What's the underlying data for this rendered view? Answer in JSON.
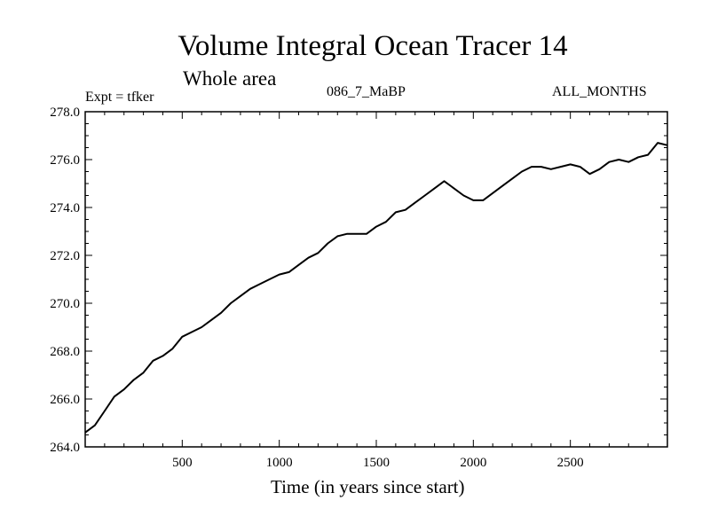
{
  "chart_data": {
    "type": "line",
    "title": "Volume Integral Ocean Tracer 14",
    "subtitle": "Whole area",
    "annotations": {
      "experiment": "Expt = tfker",
      "run": "086_7_MaBP",
      "months": "ALL_MONTHS"
    },
    "xlabel": "Time (in years since start)",
    "ylabel": "",
    "xlim": [
      0,
      3000
    ],
    "ylim": [
      264.0,
      278.0
    ],
    "xticks": [
      500,
      1000,
      1500,
      2000,
      2500
    ],
    "yticks": [
      "264.0",
      "266.0",
      "268.0",
      "270.0",
      "272.0",
      "274.0",
      "276.0",
      "278.0"
    ],
    "grid": false,
    "series": [
      {
        "x": [
          0,
          50,
          100,
          150,
          200,
          250,
          300,
          350,
          400,
          450,
          500,
          550,
          600,
          650,
          700,
          750,
          800,
          850,
          900,
          950,
          1000,
          1050,
          1100,
          1150,
          1200,
          1250,
          1300,
          1350,
          1400,
          1450,
          1500,
          1550,
          1600,
          1650,
          1700,
          1750,
          1800,
          1850,
          1900,
          1950,
          2000,
          2050,
          2100,
          2150,
          2200,
          2250,
          2300,
          2350,
          2400,
          2450,
          2500,
          2550,
          2600,
          2650,
          2700,
          2750,
          2800,
          2850,
          2900,
          2950,
          3000
        ],
        "y": [
          264.6,
          264.9,
          265.5,
          266.1,
          266.4,
          266.8,
          267.1,
          267.6,
          267.8,
          268.1,
          268.6,
          268.8,
          269.0,
          269.3,
          269.6,
          270.0,
          270.3,
          270.6,
          270.8,
          271.0,
          271.2,
          271.3,
          271.6,
          271.9,
          272.1,
          272.5,
          272.8,
          272.9,
          272.9,
          272.9,
          273.2,
          273.4,
          273.8,
          273.9,
          274.2,
          274.5,
          274.8,
          275.1,
          274.8,
          274.5,
          274.3,
          274.3,
          274.6,
          274.9,
          275.2,
          275.5,
          275.7,
          275.7,
          275.6,
          275.7,
          275.8,
          275.7,
          275.4,
          275.6,
          275.9,
          276.0,
          275.9,
          276.1,
          276.2,
          276.7,
          276.6
        ]
      }
    ]
  }
}
